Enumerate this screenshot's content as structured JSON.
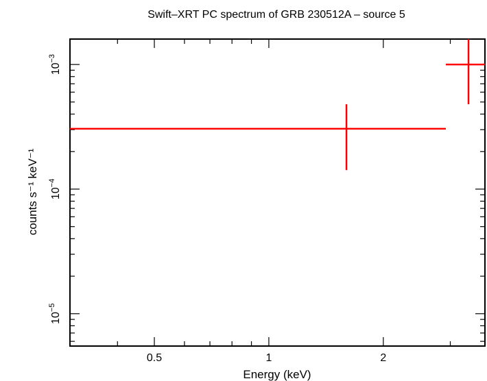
{
  "chart_data": {
    "type": "scatter",
    "title": "Swift–XRT PC spectrum of GRB 230512A – source 5",
    "xlabel": "Energy (keV)",
    "ylabel": "counts s⁻¹ keV⁻¹",
    "x_scale": "log",
    "y_scale": "log",
    "xlim": [
      0.3,
      3.7
    ],
    "ylim": [
      5.5e-06,
      0.0016
    ],
    "x_ticks": [
      {
        "value": 0.5,
        "label": "0.5"
      },
      {
        "value": 1,
        "label": "1"
      },
      {
        "value": 2,
        "label": "2"
      }
    ],
    "y_ticks": [
      {
        "value": 1e-05,
        "base": "10",
        "exp": "−5"
      },
      {
        "value": 0.0001,
        "base": "10",
        "exp": "−4"
      },
      {
        "value": 0.001,
        "base": "10",
        "exp": "−3"
      }
    ],
    "series": [
      {
        "color": "#ff0000",
        "points": [
          {
            "x": 1.6,
            "xlo": 0.3,
            "xhi": 2.92,
            "y": 0.000305,
            "ylo": 0.000142,
            "yhi": 0.00048
          },
          {
            "x": 3.35,
            "xlo": 2.92,
            "xhi": 3.7,
            "y": 0.001,
            "ylo": 0.00048,
            "yhi": 0.0016
          }
        ]
      }
    ]
  }
}
